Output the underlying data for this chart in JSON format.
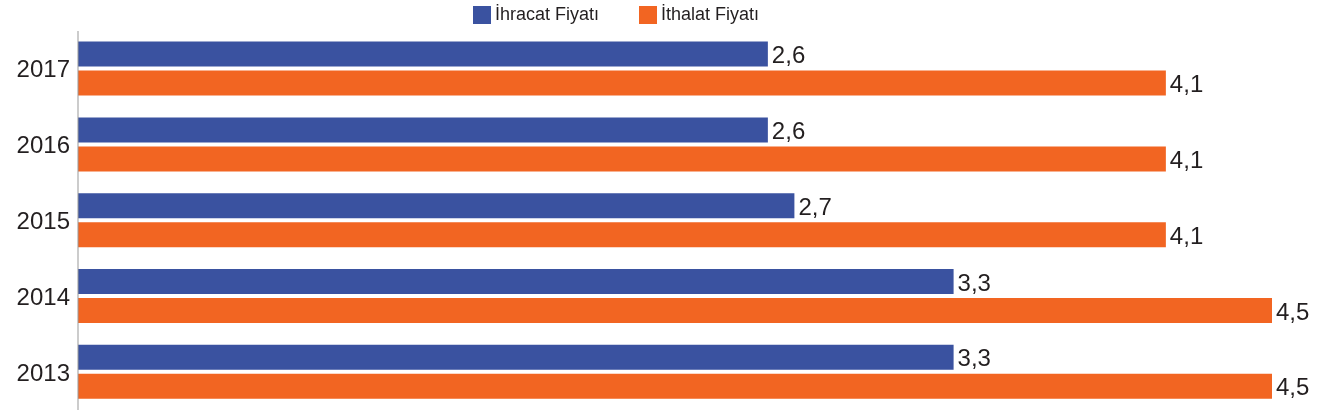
{
  "chart_data": {
    "type": "bar",
    "orientation": "horizontal",
    "categories": [
      "2017",
      "2016",
      "2015",
      "2014",
      "2013"
    ],
    "series": [
      {
        "name": "İhracat Fiyatı",
        "color": "#3a52a0",
        "values": [
          2.6,
          2.6,
          2.7,
          3.3,
          3.3
        ],
        "value_labels": [
          "2,6",
          "2,6",
          "2,7",
          "3,3",
          "3,3"
        ]
      },
      {
        "name": "İthalat Fiyatı",
        "color": "#f26522",
        "values": [
          4.1,
          4.1,
          4.1,
          4.5,
          4.5
        ],
        "value_labels": [
          "4,1",
          "4,1",
          "4,1",
          "4,5",
          "4,5"
        ]
      }
    ],
    "legend": "top",
    "grid": false
  }
}
